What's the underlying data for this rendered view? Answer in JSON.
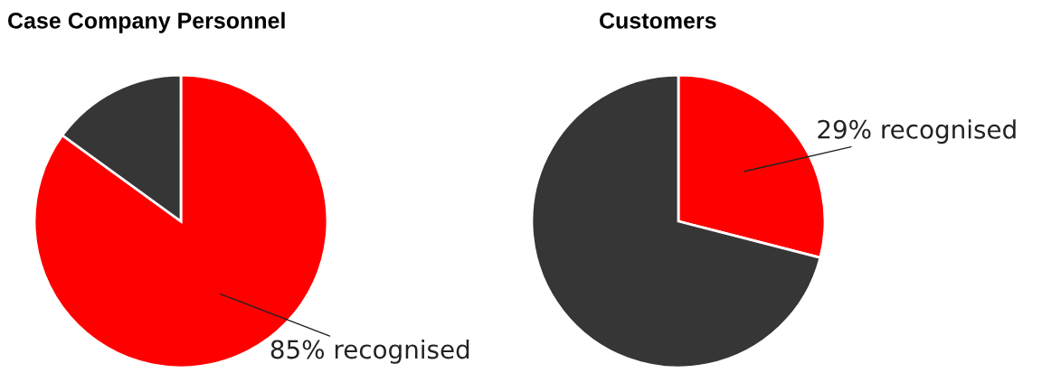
{
  "chart_data": [
    {
      "type": "pie",
      "title": "Case Company Personnel",
      "categories": [
        null,
        null
      ],
      "values": [
        85,
        15
      ],
      "colors": [
        "#ff0000",
        "#363636"
      ],
      "value_labels": [
        "85% recognised",
        null
      ]
    },
    {
      "type": "pie",
      "title": "Customers",
      "categories": [
        null,
        null
      ],
      "values": [
        29,
        71
      ],
      "colors": [
        "#ff0000",
        "#363636"
      ],
      "value_labels": [
        "29% recognised",
        null
      ]
    }
  ]
}
